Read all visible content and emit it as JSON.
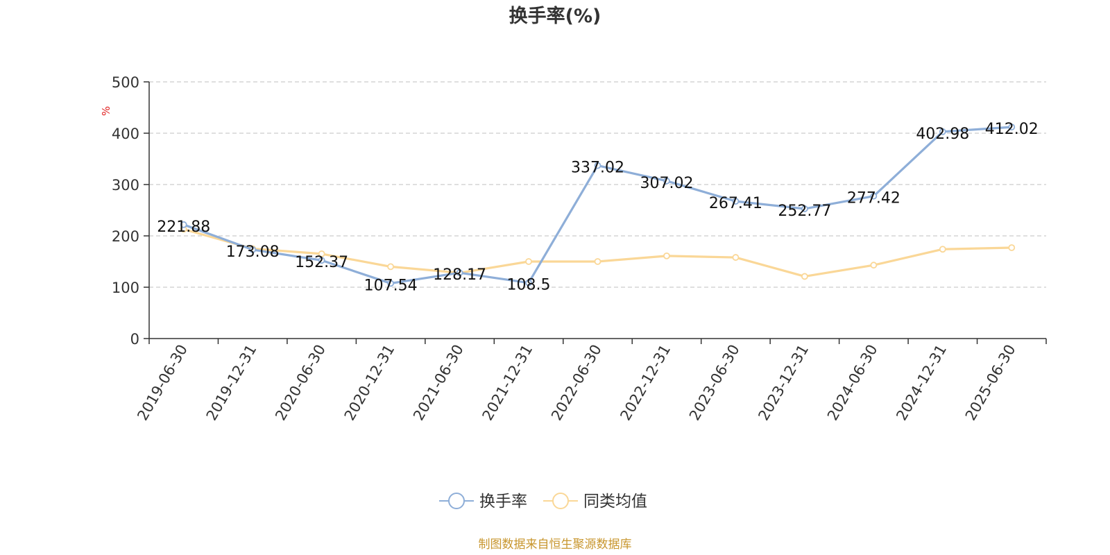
{
  "chart_data": {
    "type": "line",
    "title": "换手率(%)",
    "ylabel": "%",
    "ylim": [
      0,
      500
    ],
    "yticks": [
      0,
      100,
      200,
      300,
      400,
      500
    ],
    "grid": true,
    "legend_position": "bottom-center",
    "categories": [
      "2019-06-30",
      "2019-12-31",
      "2020-06-30",
      "2020-12-31",
      "2021-06-30",
      "2021-12-31",
      "2022-06-30",
      "2022-12-31",
      "2023-06-30",
      "2023-12-31",
      "2024-06-30",
      "2024-12-31",
      "2025-06-30"
    ],
    "series": [
      {
        "name": "换手率",
        "color": "#8eaed8",
        "values": [
          221.88,
          173.08,
          152.37,
          107.54,
          128.17,
          108.5,
          337.02,
          307.02,
          267.41,
          252.77,
          277.42,
          402.98,
          412.02
        ],
        "show_labels": true
      },
      {
        "name": "同类均值",
        "color": "#fad797",
        "values": [
          213,
          175,
          165,
          140,
          128,
          150,
          150,
          161,
          158,
          121,
          143,
          174,
          177
        ],
        "show_labels": false
      }
    ],
    "source": "制图数据来自恒生聚源数据库",
    "source_color": "#c8962e",
    "ylabel_color": "#e02020"
  }
}
